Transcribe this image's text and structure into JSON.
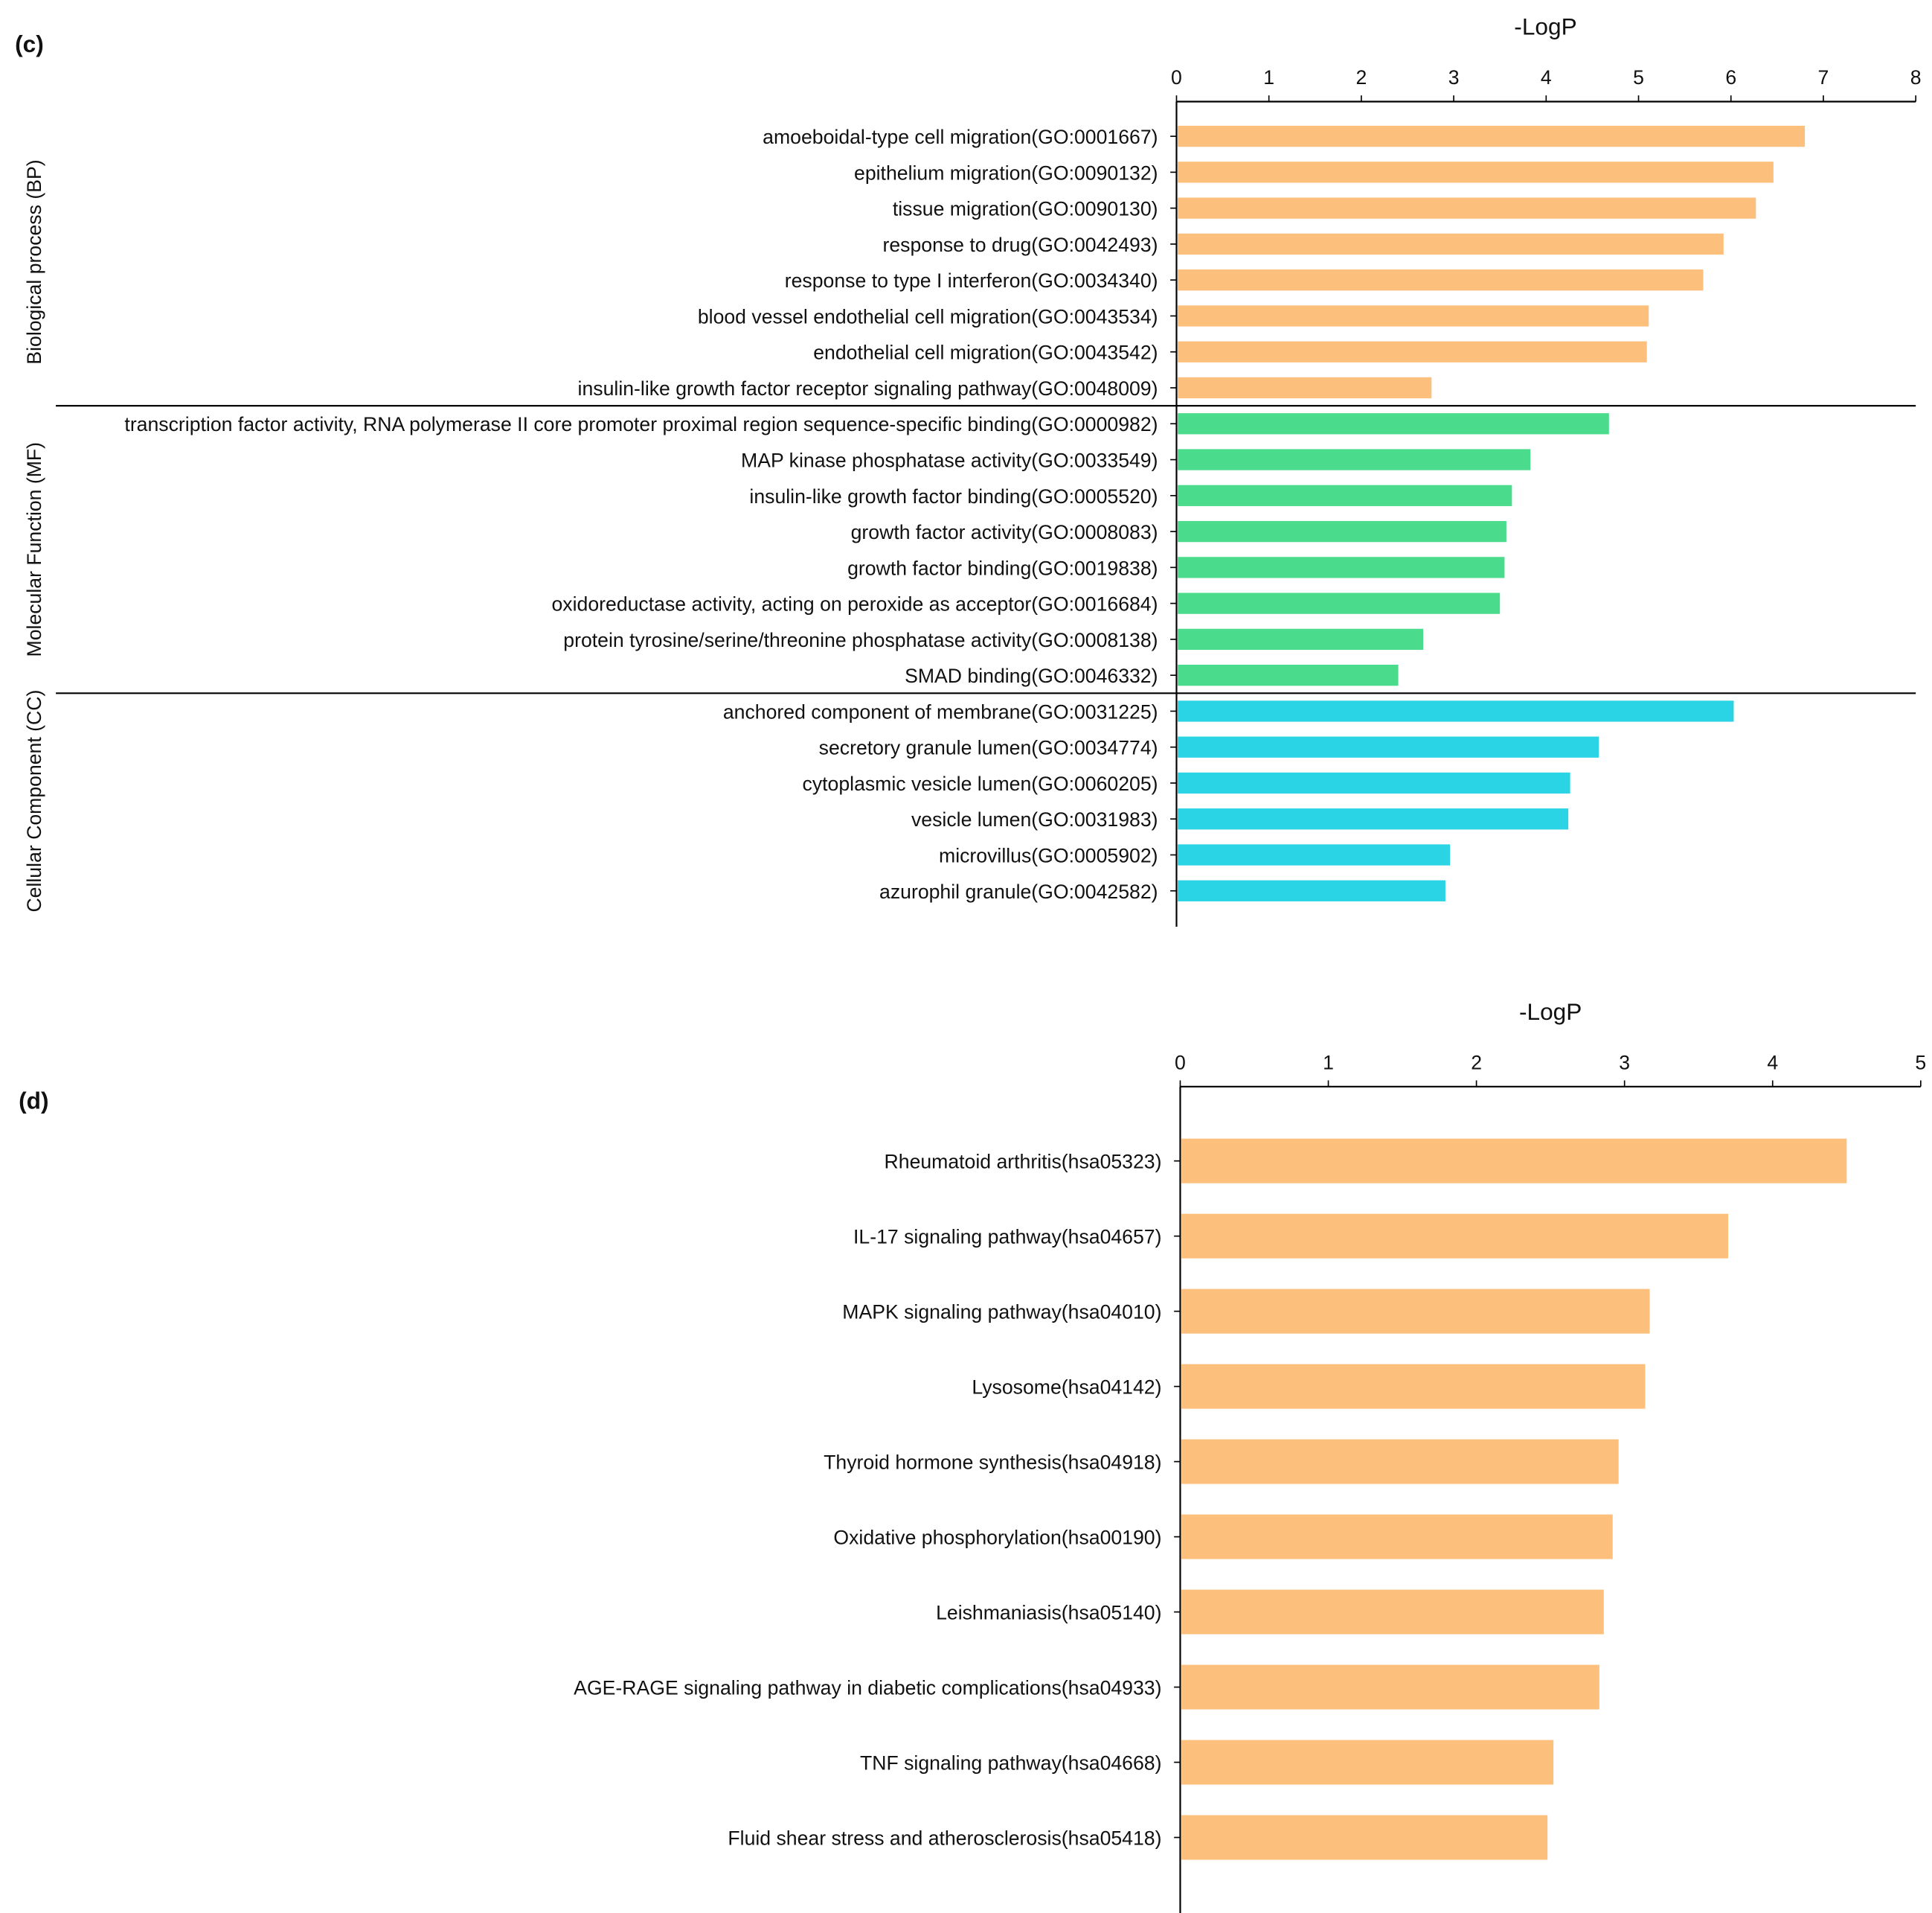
{
  "chart_data": [
    {
      "type": "bar",
      "orientation": "horizontal",
      "panel_label": "(c)",
      "title": "-LogP",
      "xlabel": "-LogP",
      "xlim": [
        0,
        8
      ],
      "xticks": [
        "0",
        "1",
        "2",
        "3",
        "4",
        "5",
        "6",
        "7",
        "8"
      ],
      "grid": false,
      "groups": [
        {
          "name": "Biological process (BP)",
          "color": "#FDBF7C",
          "categories": [
            "amoeboidal-type cell migration(GO:0001667)",
            "epithelium migration(GO:0090132)",
            "tissue migration(GO:0090130)",
            "response to drug(GO:0042493)",
            "response to type I interferon(GO:0034340)",
            "blood vessel endothelial cell migration(GO:0043534)",
            "endothelial cell migration(GO:0043542)",
            "insulin-like growth factor receptor signaling pathway(GO:0048009)"
          ],
          "values": [
            6.8,
            6.46,
            6.27,
            5.92,
            5.7,
            5.11,
            5.09,
            2.76
          ]
        },
        {
          "name": "Molecular Function (MF)",
          "color": "#4ADB8C",
          "categories": [
            "transcription factor activity, RNA polymerase II core promoter proximal region sequence-specific binding(GO:0000982)",
            "MAP kinase phosphatase activity(GO:0033549)",
            "insulin-like growth factor binding(GO:0005520)",
            "growth factor activity(GO:0008083)",
            "growth factor binding(GO:0019838)",
            "oxidoreductase activity, acting on peroxide as acceptor(GO:0016684)",
            "protein tyrosine/serine/threonine phosphatase activity(GO:0008138)",
            "SMAD binding(GO:0046332)"
          ],
          "values": [
            4.68,
            3.83,
            3.63,
            3.57,
            3.55,
            3.5,
            2.67,
            2.4
          ]
        },
        {
          "name": "Cellular Component (CC)",
          "color": "#2AD4E4",
          "categories": [
            "anchored component of membrane(GO:0031225)",
            "secretory granule lumen(GO:0034774)",
            "cytoplasmic vesicle lumen(GO:0060205)",
            "vesicle lumen(GO:0031983)",
            "microvillus(GO:0005902)",
            "azurophil granule(GO:0042582)"
          ],
          "values": [
            6.03,
            4.57,
            4.26,
            4.24,
            2.96,
            2.91
          ]
        }
      ]
    },
    {
      "type": "bar",
      "orientation": "horizontal",
      "panel_label": "(d)",
      "title": "-LogP",
      "xlabel": "-LogP",
      "xlim": [
        0,
        5
      ],
      "xticks": [
        "0",
        "1",
        "2",
        "3",
        "4",
        "5"
      ],
      "grid": false,
      "color": "#FDBF7C",
      "categories": [
        "Rheumatoid arthritis(hsa05323)",
        "IL-17 signaling pathway(hsa04657)",
        "MAPK signaling pathway(hsa04010)",
        "Lysosome(hsa04142)",
        "Thyroid hormone synthesis(hsa04918)",
        "Oxidative phosphorylation(hsa00190)",
        "Leishmaniasis(hsa05140)",
        "AGE-RAGE signaling pathway in diabetic complications(hsa04933)",
        "TNF signaling pathway(hsa04668)",
        "Fluid shear stress and atherosclerosis(hsa05418)"
      ],
      "values": [
        4.5,
        3.7,
        3.17,
        3.14,
        2.96,
        2.92,
        2.86,
        2.83,
        2.52,
        2.48
      ]
    }
  ]
}
